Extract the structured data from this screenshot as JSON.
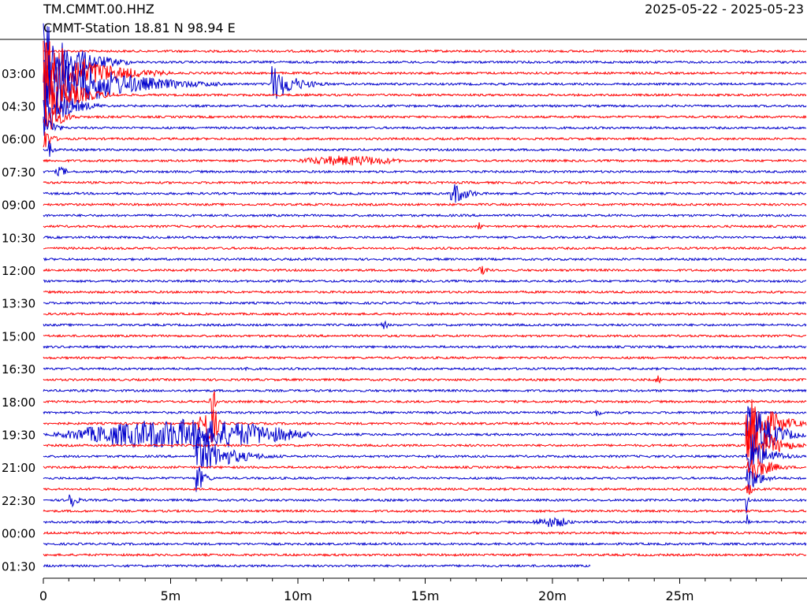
{
  "header": {
    "station_code": "TM.CMMT.00.HHZ",
    "station_info": "CMMT-Station  18.81 N 98.94 E",
    "date_range": "2025-05-22 - 2025-05-23"
  },
  "colors": {
    "trace_a": "#ff0000",
    "trace_b": "#0000cc",
    "axis": "#000000"
  },
  "chart_data": {
    "type": "line",
    "title": "TM.CMMT.00.HHZ",
    "subtitle": "CMMT-Station  18.81 N 98.94 E",
    "xlabel": "",
    "ylabel": "",
    "xlim": [
      0,
      30
    ],
    "x_unit": "minutes",
    "x_ticks": [
      0,
      5,
      10,
      15,
      20,
      25
    ],
    "x_tick_labels": [
      "0",
      "5m",
      "10m",
      "15m",
      "20m",
      "25m"
    ],
    "y_tick_labels": [
      "03:00",
      "04:30",
      "06:00",
      "07:30",
      "09:00",
      "10:30",
      "12:00",
      "13:30",
      "15:00",
      "16:30",
      "18:00",
      "19:30",
      "21:00",
      "22:30",
      "00:00",
      "01:30"
    ],
    "row_count": 48,
    "line_minutes": 30,
    "series_colors_alternating": [
      "#ff0000",
      "#0000cc"
    ],
    "last_line_end_minute": 21.5,
    "grid": false,
    "legend": "none",
    "events": [
      {
        "row": 1,
        "start_min": 0.0,
        "dur_min": 3.5,
        "amp": 1.0,
        "kind": "large"
      },
      {
        "row": 2,
        "start_min": 0.0,
        "dur_min": 5.0,
        "amp": 0.9,
        "kind": "large"
      },
      {
        "row": 3,
        "start_min": 0.0,
        "dur_min": 7.0,
        "amp": 0.9,
        "kind": "large"
      },
      {
        "row": 3,
        "start_min": 8.9,
        "dur_min": 2.5,
        "amp": 0.5,
        "kind": "quake"
      },
      {
        "row": 4,
        "start_min": 0.0,
        "dur_min": 3.0,
        "amp": 0.8,
        "kind": "large"
      },
      {
        "row": 5,
        "start_min": 0.0,
        "dur_min": 2.5,
        "amp": 0.7,
        "kind": "large"
      },
      {
        "row": 6,
        "start_min": 0.0,
        "dur_min": 1.5,
        "amp": 0.6,
        "kind": "large"
      },
      {
        "row": 7,
        "start_min": 0.0,
        "dur_min": 1.0,
        "amp": 0.45,
        "kind": "large"
      },
      {
        "row": 8,
        "start_min": 0.0,
        "dur_min": 0.8,
        "amp": 0.35,
        "kind": "large"
      },
      {
        "row": 9,
        "start_min": 0.2,
        "dur_min": 0.5,
        "amp": 0.25,
        "kind": "large"
      },
      {
        "row": 10,
        "start_min": 9.5,
        "dur_min": 5.0,
        "amp": 0.12,
        "kind": "burst"
      },
      {
        "row": 11,
        "start_min": 0.4,
        "dur_min": 0.6,
        "amp": 0.12,
        "kind": "burst"
      },
      {
        "row": 13,
        "start_min": 16.0,
        "dur_min": 1.6,
        "amp": 0.35,
        "kind": "quake"
      },
      {
        "row": 16,
        "start_min": 17.0,
        "dur_min": 0.3,
        "amp": 0.1,
        "kind": "burst"
      },
      {
        "row": 20,
        "start_min": 17.0,
        "dur_min": 0.6,
        "amp": 0.1,
        "kind": "burst"
      },
      {
        "row": 25,
        "start_min": 13.2,
        "dur_min": 0.4,
        "amp": 0.1,
        "kind": "burst"
      },
      {
        "row": 29,
        "start_min": 7.9,
        "dur_min": 0.2,
        "amp": 0.12,
        "kind": "burst"
      },
      {
        "row": 30,
        "start_min": 24.0,
        "dur_min": 0.3,
        "amp": 0.1,
        "kind": "burst"
      },
      {
        "row": 32,
        "start_min": 6.5,
        "dur_min": 0.3,
        "amp": 0.55,
        "kind": "burst"
      },
      {
        "row": 33,
        "start_min": 21.7,
        "dur_min": 0.6,
        "amp": 0.12,
        "kind": "quake"
      },
      {
        "row": 34,
        "start_min": 6.0,
        "dur_min": 1.0,
        "amp": 0.5,
        "kind": "burst"
      },
      {
        "row": 34,
        "start_min": 27.6,
        "dur_min": 2.4,
        "amp": 1.0,
        "kind": "large"
      },
      {
        "row": 35,
        "start_min": 0.0,
        "dur_min": 11.0,
        "amp": 0.35,
        "kind": "burst"
      },
      {
        "row": 35,
        "start_min": 27.6,
        "dur_min": 2.4,
        "amp": 1.0,
        "kind": "large"
      },
      {
        "row": 36,
        "start_min": 27.6,
        "dur_min": 2.4,
        "amp": 0.8,
        "kind": "large"
      },
      {
        "row": 37,
        "start_min": 6.0,
        "dur_min": 3.5,
        "amp": 0.55,
        "kind": "quake"
      },
      {
        "row": 37,
        "start_min": 27.6,
        "dur_min": 2.0,
        "amp": 0.7,
        "kind": "large"
      },
      {
        "row": 38,
        "start_min": 27.6,
        "dur_min": 2.0,
        "amp": 0.5,
        "kind": "large"
      },
      {
        "row": 39,
        "start_min": 6.0,
        "dur_min": 0.8,
        "amp": 0.45,
        "kind": "quake"
      },
      {
        "row": 39,
        "start_min": 27.6,
        "dur_min": 1.5,
        "amp": 0.4,
        "kind": "large"
      },
      {
        "row": 40,
        "start_min": 27.6,
        "dur_min": 0.5,
        "amp": 0.3,
        "kind": "large"
      },
      {
        "row": 41,
        "start_min": 1.0,
        "dur_min": 0.6,
        "amp": 0.4,
        "kind": "quake"
      },
      {
        "row": 41,
        "start_min": 27.6,
        "dur_min": 0.2,
        "amp": 0.4,
        "kind": "large"
      },
      {
        "row": 43,
        "start_min": 19.0,
        "dur_min": 2.0,
        "amp": 0.12,
        "kind": "burst"
      },
      {
        "row": 43,
        "start_min": 27.6,
        "dur_min": 0.2,
        "amp": 0.4,
        "kind": "large"
      }
    ]
  }
}
